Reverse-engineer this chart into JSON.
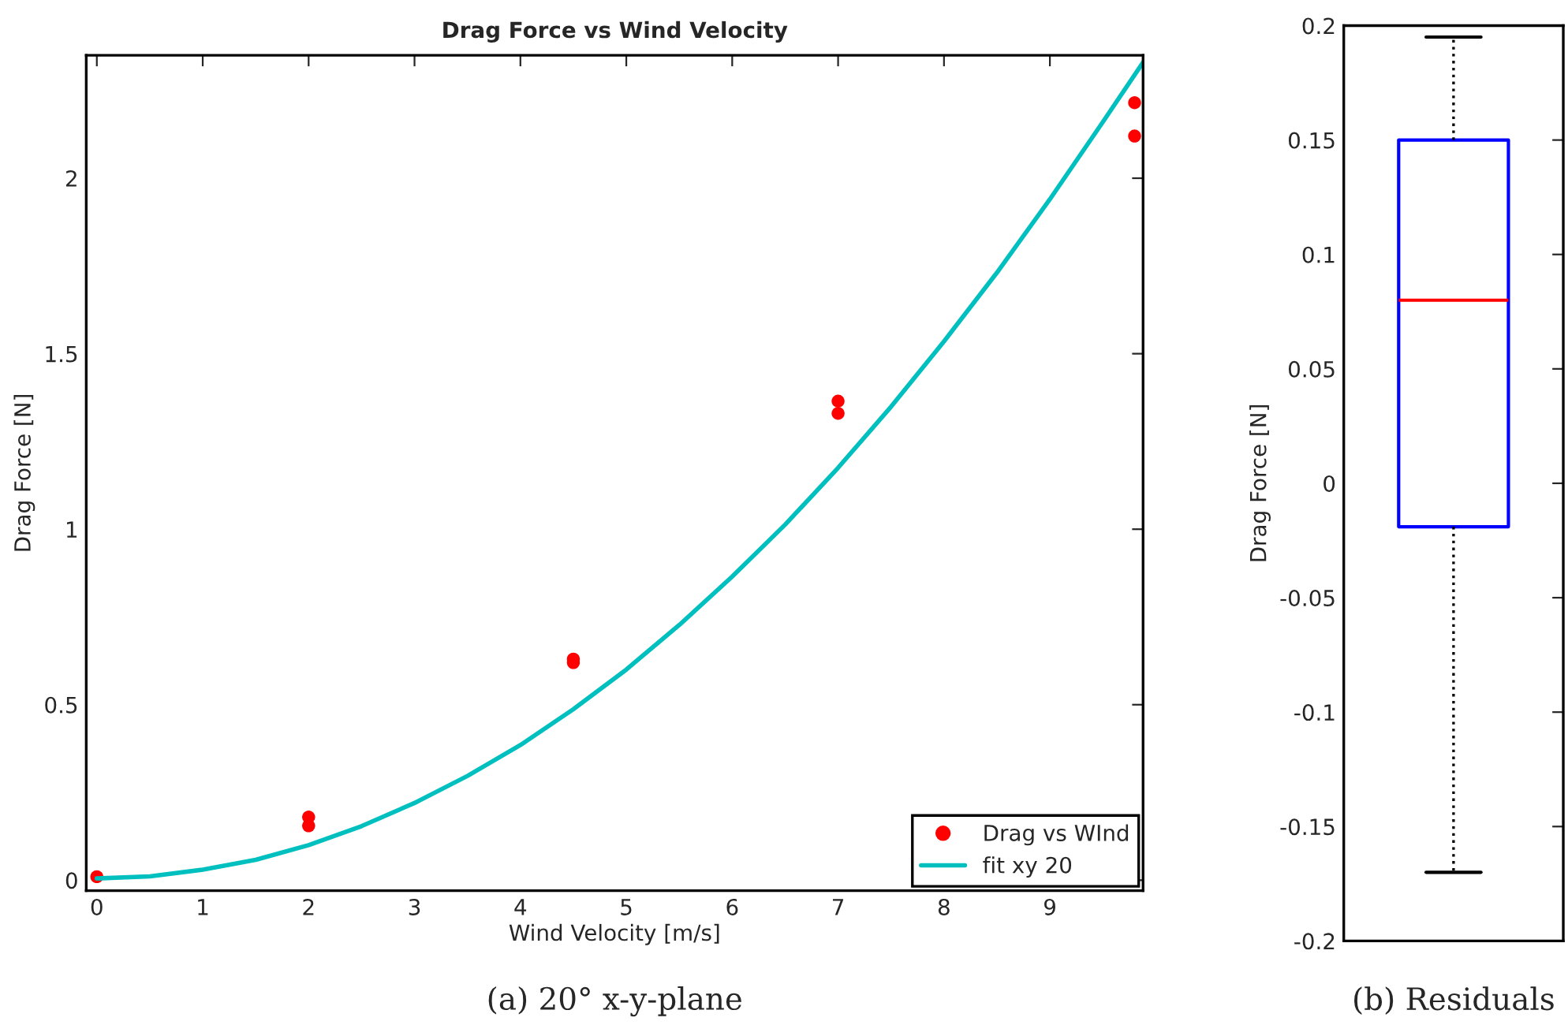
{
  "chart_data": [
    {
      "type": "scatter",
      "title": "Drag Force vs Wind Velocity",
      "xlabel": "Wind Velocity [m/s]",
      "ylabel": "Drag Force [N]",
      "xlim": [
        -0.1,
        9.88
      ],
      "xticks": [
        0,
        1,
        2,
        3,
        4,
        5,
        6,
        7,
        8,
        9
      ],
      "ylim": [
        -0.03,
        2.35
      ],
      "yticks": [
        0,
        0.5,
        1,
        1.5,
        2
      ],
      "grid": false,
      "legend": "bottom right",
      "series": [
        {
          "name": "Drag vs WInd",
          "type": "scatter",
          "marker": "circle",
          "color": "#ff0000",
          "x": [
            0,
            2,
            2,
            4.5,
            4.5,
            7,
            7,
            9.8,
            9.8
          ],
          "values": [
            0.01,
            0.18,
            0.155,
            0.63,
            0.62,
            1.365,
            1.33,
            2.215,
            2.12
          ]
        },
        {
          "name": "fit xy 20",
          "type": "line",
          "line_style": "solid",
          "color": "#00bfbf",
          "x": [
            0,
            0.5,
            1,
            1.5,
            2,
            2.5,
            3,
            3.5,
            4,
            4.5,
            5,
            5.5,
            6,
            6.5,
            7,
            7.5,
            8,
            8.5,
            9,
            9.5,
            9.88
          ],
          "values": [
            0.005,
            0.011,
            0.03,
            0.058,
            0.1,
            0.154,
            0.22,
            0.297,
            0.385,
            0.487,
            0.6,
            0.727,
            0.865,
            1.013,
            1.175,
            1.349,
            1.535,
            1.731,
            1.94,
            2.16,
            2.33
          ]
        }
      ],
      "annotations": [
        "(a) 20° x-y-plane"
      ]
    },
    {
      "type": "box",
      "ylabel": "Drag Force [N]",
      "categories": [
        null
      ],
      "ylim": [
        -0.2,
        0.2
      ],
      "yticks": [
        -0.2,
        -0.15,
        -0.1,
        -0.05,
        0,
        0.05,
        0.1,
        0.15,
        0.2
      ],
      "tick_labels": "y",
      "boxes": [
        {
          "low": -0.17,
          "q1": -0.019,
          "median": 0.08,
          "q3": 0.15,
          "high": 0.195
        }
      ],
      "annotations": [
        "(b) Residuals"
      ]
    }
  ]
}
